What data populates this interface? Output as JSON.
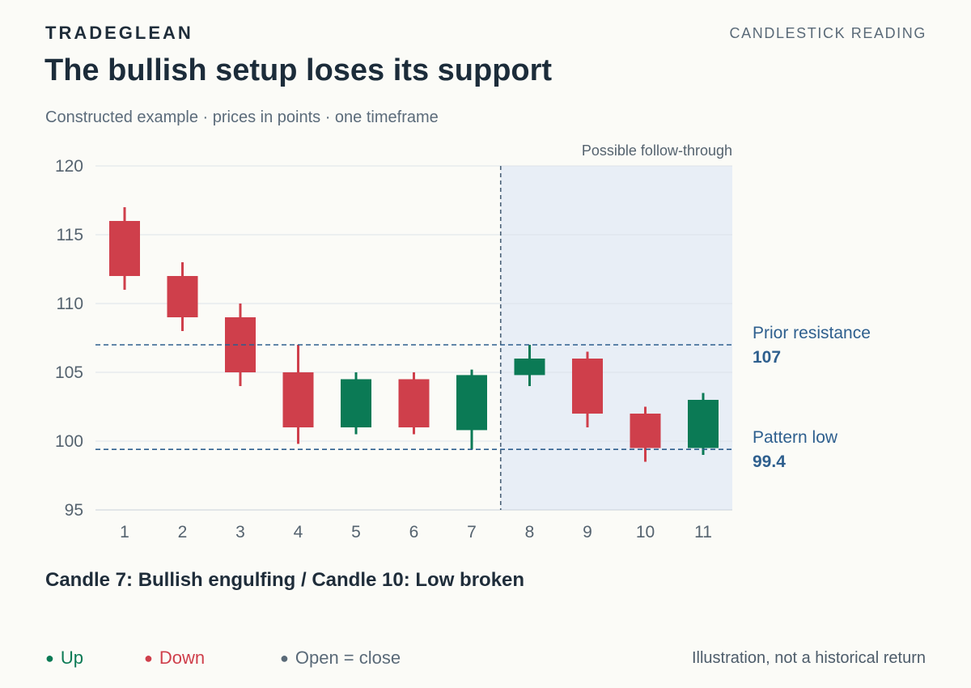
{
  "header": {
    "brand": "TRADEGLEAN",
    "kicker": "CANDLESTICK READING",
    "title": "The bullish setup loses its support",
    "subtitle": "Constructed example · prices in points · one timeframe"
  },
  "caption": "Candle 7: Bullish engulfing / Candle 10: Low broken",
  "legend": {
    "up": "Up",
    "down": "Down",
    "flat": "Open = close"
  },
  "footnote": "Illustration, not a historical return",
  "colors": {
    "up": "#0b7a55",
    "down": "#cf3f4b",
    "flat": "#5a6a78",
    "reference": "#2e5f8e",
    "shade": "#e8eef6"
  },
  "chart_data": {
    "type": "candlestick",
    "x": [
      1,
      2,
      3,
      4,
      5,
      6,
      7,
      8,
      9,
      10,
      11
    ],
    "candles": [
      {
        "x": 1,
        "open": 116,
        "high": 117,
        "low": 111,
        "close": 112
      },
      {
        "x": 2,
        "open": 112,
        "high": 113,
        "low": 108,
        "close": 109
      },
      {
        "x": 3,
        "open": 109,
        "high": 110,
        "low": 104,
        "close": 105
      },
      {
        "x": 4,
        "open": 105,
        "high": 107,
        "low": 99.8,
        "close": 101
      },
      {
        "x": 5,
        "open": 101,
        "high": 105,
        "low": 100.5,
        "close": 104.5
      },
      {
        "x": 6,
        "open": 104.5,
        "high": 105,
        "low": 100.5,
        "close": 101
      },
      {
        "x": 7,
        "open": 100.8,
        "high": 105.2,
        "low": 99.4,
        "close": 104.8
      },
      {
        "x": 8,
        "open": 104.8,
        "high": 107,
        "low": 104,
        "close": 106
      },
      {
        "x": 9,
        "open": 106,
        "high": 106.5,
        "low": 101,
        "close": 102
      },
      {
        "x": 10,
        "open": 102,
        "high": 102.5,
        "low": 98.5,
        "close": 99.5
      },
      {
        "x": 11,
        "open": 99.5,
        "high": 103.5,
        "low": 99,
        "close": 103
      }
    ],
    "ylim": [
      95,
      120
    ],
    "yticks": [
      95,
      100,
      105,
      110,
      115,
      120
    ],
    "grid": true,
    "reference_lines": [
      {
        "label": "Prior resistance",
        "value": 107,
        "value_label": "107"
      },
      {
        "label": "Pattern low",
        "value": 99.4,
        "value_label": "99.4"
      }
    ],
    "divider_after_x": 7,
    "shaded_region": {
      "from_x": 7.5,
      "to_x": 11.5,
      "label": "Possible follow-through"
    }
  }
}
